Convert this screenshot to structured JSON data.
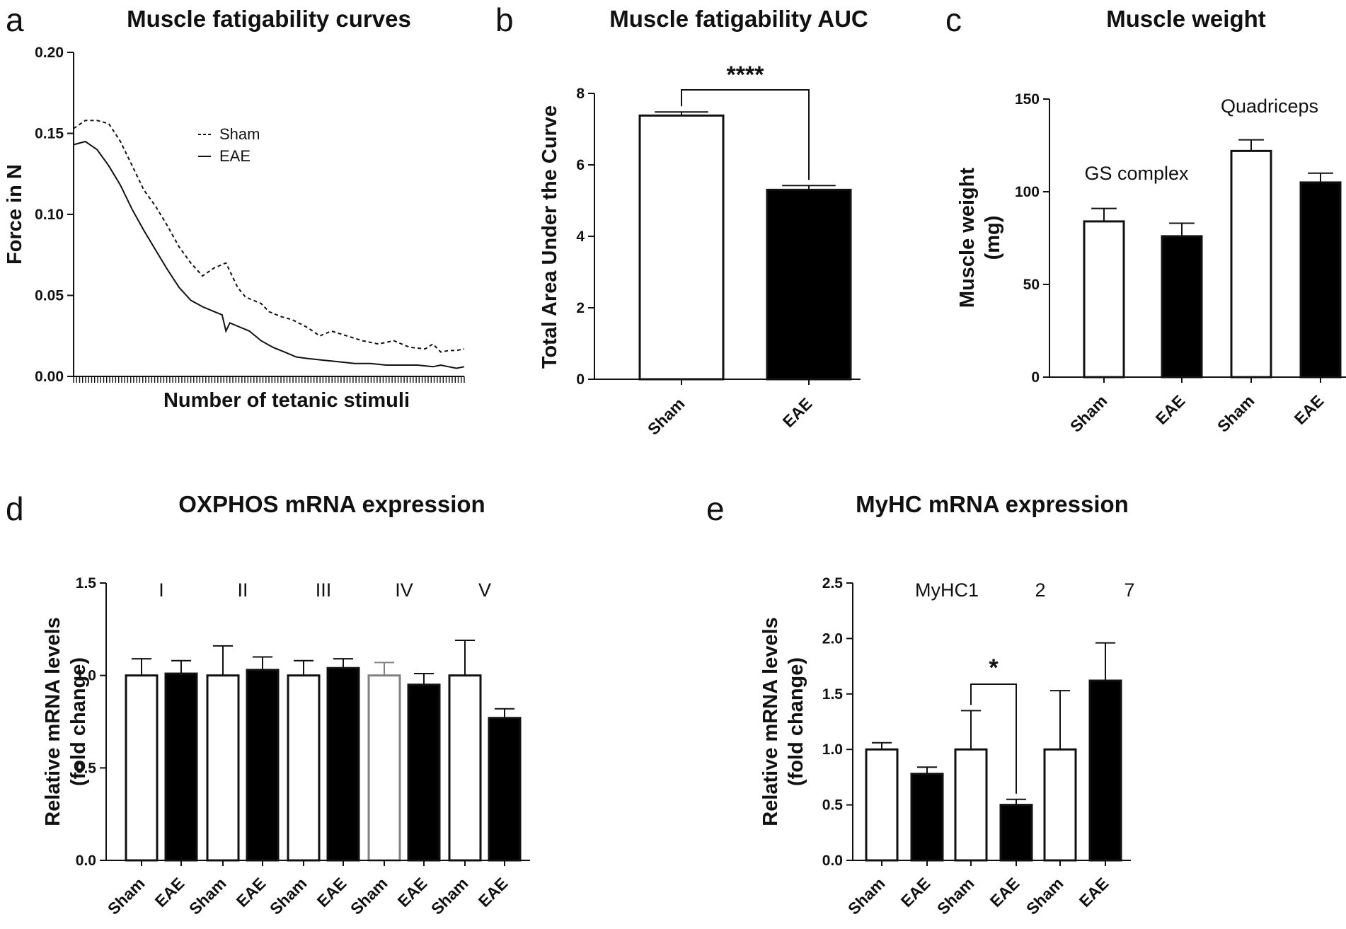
{
  "colors": {
    "ink": "#111111",
    "sham_fill": "#ffffff",
    "eae_fill": "#000000",
    "gray_edge": "#808080"
  },
  "chart_data": [
    {
      "panel": "a",
      "type": "line",
      "title": "Muscle fatigability curves",
      "xlabel": "Number of tetanic stimuli",
      "ylabel": "Force in N",
      "ylim": [
        0,
        0.2
      ],
      "yticks": [
        "0.00",
        "0.05",
        "0.10",
        "0.15",
        "0.20"
      ],
      "xlim": [
        0,
        100
      ],
      "legend": {
        "placement": "upper-middle",
        "entries": [
          "Sham",
          "EAE"
        ]
      },
      "series": [
        {
          "name": "Sham",
          "style": "dashed",
          "x": [
            0,
            3,
            6,
            9,
            12,
            15,
            18,
            21,
            24,
            27,
            30,
            33,
            36,
            39,
            42,
            44,
            46,
            48,
            50,
            53,
            56,
            60,
            63,
            66,
            70,
            74,
            78,
            82,
            86,
            90,
            92,
            94,
            96,
            98,
            100
          ],
          "y": [
            0.153,
            0.158,
            0.158,
            0.156,
            0.145,
            0.13,
            0.115,
            0.105,
            0.093,
            0.08,
            0.07,
            0.062,
            0.067,
            0.07,
            0.055,
            0.049,
            0.047,
            0.045,
            0.04,
            0.037,
            0.035,
            0.03,
            0.025,
            0.028,
            0.025,
            0.022,
            0.02,
            0.022,
            0.018,
            0.017,
            0.02,
            0.015,
            0.016,
            0.016,
            0.017
          ]
        },
        {
          "name": "EAE",
          "style": "solid",
          "x": [
            0,
            3,
            6,
            9,
            12,
            15,
            18,
            21,
            24,
            27,
            30,
            33,
            36,
            38,
            39,
            40,
            42,
            45,
            48,
            51,
            54,
            57,
            60,
            64,
            68,
            72,
            76,
            80,
            84,
            88,
            92,
            94,
            96,
            98,
            100
          ],
          "y": [
            0.143,
            0.145,
            0.14,
            0.13,
            0.118,
            0.103,
            0.09,
            0.078,
            0.066,
            0.055,
            0.047,
            0.043,
            0.04,
            0.038,
            0.028,
            0.033,
            0.031,
            0.028,
            0.022,
            0.018,
            0.015,
            0.012,
            0.011,
            0.01,
            0.009,
            0.008,
            0.008,
            0.007,
            0.007,
            0.007,
            0.006,
            0.007,
            0.006,
            0.005,
            0.006
          ]
        }
      ]
    },
    {
      "panel": "b",
      "type": "bar",
      "title": "Muscle fatigability AUC",
      "xlabel": "",
      "ylabel": "Total Area Under the Curve",
      "ylim": [
        0,
        8
      ],
      "yticks": [
        "0",
        "2",
        "4",
        "6",
        "8"
      ],
      "categories": [
        "Sham",
        "EAE"
      ],
      "values": [
        7.38,
        5.3
      ],
      "errors": [
        0.1,
        0.12
      ],
      "fills": [
        "white",
        "black"
      ],
      "significance": [
        {
          "from": 0,
          "to": 1,
          "label": "****"
        }
      ]
    },
    {
      "panel": "c",
      "type": "bar",
      "title": "Muscle weight",
      "xlabel": "",
      "ylabel": "Muscle weight (mg)",
      "ylabel_lines": [
        "Muscle weight",
        "(mg)"
      ],
      "ylim": [
        0,
        150
      ],
      "yticks": [
        "0",
        "50",
        "100",
        "150"
      ],
      "categories": [
        "Sham",
        "EAE",
        "Sham",
        "EAE"
      ],
      "values": [
        84,
        76,
        122,
        105
      ],
      "errors": [
        7,
        7,
        6,
        5
      ],
      "fills": [
        "white",
        "black",
        "white",
        "black"
      ],
      "group_labels": [
        "GS complex",
        "Quadriceps"
      ]
    },
    {
      "panel": "d",
      "type": "bar",
      "title": "OXPHOS mRNA expression",
      "xlabel": "",
      "ylabel": "Relative mRNA levels (fold change)",
      "ylabel_lines": [
        "Relative mRNA levels",
        "(fold change)"
      ],
      "ylim": [
        0,
        1.5
      ],
      "yticks": [
        "0.0",
        "0.5",
        "1.0",
        "1.5"
      ],
      "categories": [
        "Sham",
        "EAE",
        "Sham",
        "EAE",
        "Sham",
        "EAE",
        "Sham",
        "EAE",
        "Sham",
        "EAE"
      ],
      "values": [
        1.0,
        1.01,
        1.0,
        1.03,
        1.0,
        1.04,
        1.0,
        0.95,
        1.0,
        0.77
      ],
      "errors": [
        0.09,
        0.07,
        0.16,
        0.07,
        0.08,
        0.05,
        0.07,
        0.06,
        0.19,
        0.05
      ],
      "fills": [
        "white",
        "black",
        "white",
        "black",
        "white",
        "black",
        "white-gray",
        "black",
        "white",
        "black"
      ],
      "group_labels": [
        "I",
        "II",
        "III",
        "IV",
        "V"
      ]
    },
    {
      "panel": "e",
      "type": "bar",
      "title": "MyHC mRNA expression",
      "xlabel": "",
      "ylabel": "Relative mRNA levels (fold change)",
      "ylabel_lines": [
        "Relative mRNA levels",
        "(fold change)"
      ],
      "ylim": [
        0,
        2.5
      ],
      "yticks": [
        "0.0",
        "0.5",
        "1.0",
        "1.5",
        "2.0",
        "2.5"
      ],
      "categories": [
        "Sham",
        "EAE",
        "Sham",
        "EAE",
        "Sham",
        "EAE"
      ],
      "values": [
        1.0,
        0.78,
        1.0,
        0.5,
        1.0,
        1.62
      ],
      "errors": [
        0.06,
        0.06,
        0.35,
        0.05,
        0.53,
        0.34
      ],
      "fills": [
        "white",
        "black",
        "white",
        "black",
        "white",
        "black"
      ],
      "group_labels": [
        "MyHC1",
        "2",
        "7"
      ],
      "significance": [
        {
          "from": 2,
          "to": 3,
          "label": "*"
        }
      ]
    }
  ]
}
